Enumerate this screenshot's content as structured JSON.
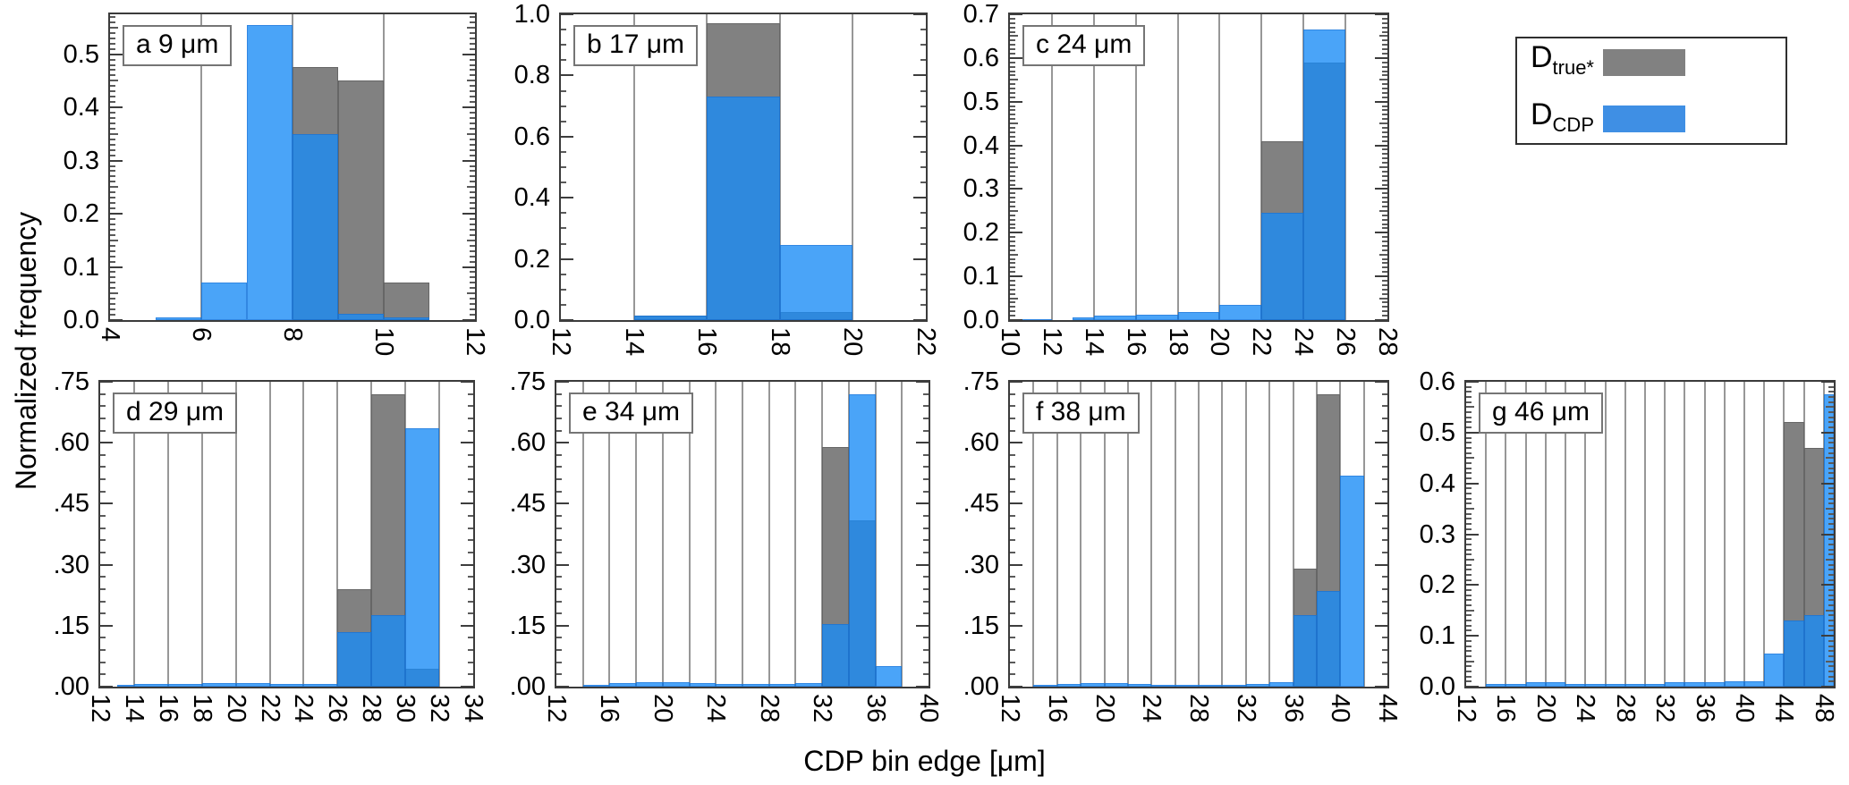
{
  "axes": {
    "y_title": "Normalized frequency",
    "x_title": "CDP bin edge [μm]"
  },
  "colors": {
    "gray": "#818181",
    "blue_fill": "rgba(26,139,246,0.79)",
    "legend_gray": "#818181",
    "legend_blue": "#3F8FE4"
  },
  "legend": {
    "items": [
      {
        "main": "D",
        "sub": "true*",
        "series_key": "gray"
      },
      {
        "main": "D",
        "sub": "CDP",
        "series_key": "blue"
      }
    ]
  },
  "chart_data": [
    {
      "type": "bar",
      "panel": "a",
      "title": "a 9 μm",
      "x_range": [
        4,
        12
      ],
      "grid_step": 2,
      "x_tick_vals": [
        4,
        6,
        8,
        10,
        12
      ],
      "x_ticks": [
        "4",
        "6",
        "8",
        "10",
        "12"
      ],
      "y_range": [
        0,
        0.575
      ],
      "y_major_step": 0.1,
      "y_minor_div": 10,
      "y_tick_labels": [
        "0.0",
        "0.1",
        "0.2",
        "0.3",
        "0.4",
        "0.5"
      ],
      "series": [
        {
          "name": "Dtrue*",
          "color_key": "gray",
          "bars": [
            [
              8,
              9,
              0.475
            ],
            [
              9,
              10,
              0.45
            ],
            [
              10,
              11,
              0.07
            ]
          ]
        },
        {
          "name": "DCDP",
          "color_key": "blue",
          "bars": [
            [
              5,
              6,
              0.005
            ],
            [
              6,
              7,
              0.07
            ],
            [
              7,
              8,
              0.555
            ],
            [
              8,
              9,
              0.35
            ],
            [
              9,
              10,
              0.012
            ],
            [
              10,
              11,
              0.005
            ]
          ]
        }
      ]
    },
    {
      "type": "bar",
      "panel": "b",
      "title": "b 17 μm",
      "x_range": [
        12,
        22
      ],
      "grid_step": 2,
      "x_tick_vals": [
        12,
        14,
        16,
        18,
        20,
        22
      ],
      "x_ticks": [
        "12",
        "14",
        "16",
        "18",
        "20",
        "22"
      ],
      "y_range": [
        0,
        1.0
      ],
      "y_major_step": 0.2,
      "y_minor_div": 4,
      "y_tick_labels": [
        "0.0",
        "0.2",
        "0.4",
        "0.6",
        "0.8",
        "1.0"
      ],
      "series": [
        {
          "name": "Dtrue*",
          "color_key": "gray",
          "bars": [
            [
              14,
              16,
              0.015
            ],
            [
              16,
              18,
              0.97
            ],
            [
              18,
              20,
              0.025
            ]
          ]
        },
        {
          "name": "DCDP",
          "color_key": "blue",
          "bars": [
            [
              14,
              16,
              0.015
            ],
            [
              16,
              18,
              0.73
            ],
            [
              18,
              20,
              0.245
            ]
          ]
        }
      ]
    },
    {
      "type": "bar",
      "panel": "c",
      "title": "c 24 μm",
      "x_range": [
        10,
        28
      ],
      "grid_step": 2,
      "x_tick_vals": [
        10,
        12,
        14,
        16,
        18,
        20,
        22,
        24,
        26,
        28
      ],
      "x_ticks": [
        "10",
        "12",
        "14",
        "16",
        "18",
        "20",
        "22",
        "24",
        "26",
        "28"
      ],
      "y_range": [
        0,
        0.7
      ],
      "y_major_step": 0.1,
      "y_minor_div": 10,
      "y_tick_labels": [
        "0.0",
        "0.1",
        "0.2",
        "0.3",
        "0.4",
        "0.5",
        "0.6",
        "0.7"
      ],
      "series": [
        {
          "name": "Dtrue*",
          "color_key": "gray",
          "bars": [
            [
              22,
              24,
              0.41
            ],
            [
              24,
              26,
              0.59
            ]
          ]
        },
        {
          "name": "DCDP",
          "color_key": "blue",
          "bars": [
            [
              10,
              12,
              0.003
            ],
            [
              13,
              14,
              0.007
            ],
            [
              14,
              16,
              0.01
            ],
            [
              16,
              18,
              0.013
            ],
            [
              18,
              20,
              0.018
            ],
            [
              20,
              22,
              0.035
            ],
            [
              22,
              24,
              0.245
            ],
            [
              24,
              26,
              0.665
            ]
          ]
        }
      ]
    },
    {
      "type": "bar",
      "panel": "d",
      "title": "d 29 μm",
      "x_range": [
        12,
        34
      ],
      "grid_step": 2,
      "x_tick_vals": [
        12,
        14,
        16,
        18,
        20,
        22,
        24,
        26,
        28,
        30,
        32,
        34
      ],
      "x_ticks": [
        "12",
        "14",
        "16",
        "18",
        "20",
        "22",
        "24",
        "26",
        "28",
        "30",
        "32",
        "34"
      ],
      "y_range": [
        0,
        0.75
      ],
      "y_major_step": 0.15,
      "y_minor_div": 5,
      "y_tick_labels": [
        ".00",
        ".15",
        ".30",
        ".45",
        ".60",
        ".75"
      ],
      "series": [
        {
          "name": "Dtrue*",
          "color_key": "gray",
          "bars": [
            [
              26,
              28,
              0.24
            ],
            [
              28,
              30,
              0.72
            ],
            [
              30,
              32,
              0.045
            ]
          ]
        },
        {
          "name": "DCDP",
          "color_key": "blue",
          "bars": [
            [
              13,
              14,
              0.004
            ],
            [
              14,
              16,
              0.006
            ],
            [
              16,
              18,
              0.006
            ],
            [
              18,
              20,
              0.008
            ],
            [
              20,
              22,
              0.008
            ],
            [
              22,
              24,
              0.006
            ],
            [
              24,
              26,
              0.006
            ],
            [
              26,
              28,
              0.135
            ],
            [
              28,
              30,
              0.175
            ],
            [
              30,
              32,
              0.635
            ]
          ]
        }
      ]
    },
    {
      "type": "bar",
      "panel": "e",
      "title": "e 34 μm",
      "x_range": [
        12,
        40
      ],
      "grid_step": 2,
      "x_tick_vals": [
        12,
        16,
        20,
        24,
        28,
        32,
        36,
        40
      ],
      "x_ticks": [
        "12",
        "16",
        "20",
        "24",
        "28",
        "32",
        "36",
        "40"
      ],
      "y_range": [
        0,
        0.75
      ],
      "y_major_step": 0.15,
      "y_minor_div": 5,
      "y_tick_labels": [
        ".00",
        ".15",
        ".30",
        ".45",
        ".60",
        ".75"
      ],
      "series": [
        {
          "name": "Dtrue*",
          "color_key": "gray",
          "bars": [
            [
              32,
              34,
              0.59
            ],
            [
              34,
              36,
              0.41
            ]
          ]
        },
        {
          "name": "DCDP",
          "color_key": "blue",
          "bars": [
            [
              14,
              16,
              0.005
            ],
            [
              16,
              18,
              0.008
            ],
            [
              18,
              20,
              0.01
            ],
            [
              20,
              22,
              0.01
            ],
            [
              22,
              24,
              0.008
            ],
            [
              24,
              26,
              0.006
            ],
            [
              26,
              28,
              0.006
            ],
            [
              28,
              30,
              0.006
            ],
            [
              30,
              32,
              0.008
            ],
            [
              32,
              34,
              0.155
            ],
            [
              34,
              36,
              0.72
            ],
            [
              36,
              38,
              0.05
            ]
          ]
        }
      ]
    },
    {
      "type": "bar",
      "panel": "f",
      "title": "f 38 μm",
      "x_range": [
        12,
        44
      ],
      "grid_step": 2,
      "x_tick_vals": [
        12,
        16,
        20,
        24,
        28,
        32,
        36,
        40,
        44
      ],
      "x_ticks": [
        "12",
        "16",
        "20",
        "24",
        "28",
        "32",
        "36",
        "40",
        "44"
      ],
      "y_range": [
        0,
        0.75
      ],
      "y_major_step": 0.15,
      "y_minor_div": 5,
      "y_tick_labels": [
        ".00",
        ".15",
        ".30",
        ".45",
        ".60",
        ".75"
      ],
      "series": [
        {
          "name": "Dtrue*",
          "color_key": "gray",
          "bars": [
            [
              36,
              38,
              0.29
            ],
            [
              38,
              40,
              0.72
            ]
          ]
        },
        {
          "name": "DCDP",
          "color_key": "blue",
          "bars": [
            [
              14,
              16,
              0.004
            ],
            [
              16,
              18,
              0.006
            ],
            [
              18,
              20,
              0.008
            ],
            [
              20,
              22,
              0.008
            ],
            [
              22,
              24,
              0.006
            ],
            [
              24,
              26,
              0.005
            ],
            [
              26,
              28,
              0.004
            ],
            [
              28,
              30,
              0.005
            ],
            [
              30,
              32,
              0.004
            ],
            [
              32,
              34,
              0.006
            ],
            [
              34,
              36,
              0.012
            ],
            [
              36,
              38,
              0.175
            ],
            [
              38,
              40,
              0.235
            ],
            [
              40,
              42,
              0.52
            ]
          ]
        }
      ]
    },
    {
      "type": "bar",
      "panel": "g",
      "title": "g 46 μm",
      "x_range": [
        12,
        49
      ],
      "grid_step": 2,
      "x_tick_vals": [
        12,
        16,
        20,
        24,
        28,
        32,
        36,
        40,
        44,
        48
      ],
      "x_ticks": [
        "12",
        "16",
        "20",
        "24",
        "28",
        "32",
        "36",
        "40",
        "44",
        "48"
      ],
      "y_range": [
        0,
        0.6
      ],
      "y_major_step": 0.1,
      "y_minor_div": 10,
      "y_tick_labels": [
        "0.0",
        "0.1",
        "0.2",
        "0.3",
        "0.4",
        "0.5",
        "0.6"
      ],
      "series": [
        {
          "name": "Dtrue*",
          "color_key": "gray",
          "bars": [
            [
              44,
              46,
              0.52
            ],
            [
              46,
              48,
              0.47
            ]
          ]
        },
        {
          "name": "DCDP",
          "color_key": "blue",
          "bars": [
            [
              14,
              16,
              0.005
            ],
            [
              16,
              18,
              0.006
            ],
            [
              18,
              20,
              0.008
            ],
            [
              20,
              22,
              0.008
            ],
            [
              22,
              24,
              0.006
            ],
            [
              24,
              26,
              0.005
            ],
            [
              26,
              28,
              0.005
            ],
            [
              28,
              30,
              0.005
            ],
            [
              30,
              32,
              0.006
            ],
            [
              32,
              34,
              0.008
            ],
            [
              34,
              36,
              0.008
            ],
            [
              36,
              38,
              0.008
            ],
            [
              38,
              40,
              0.01
            ],
            [
              40,
              42,
              0.01
            ],
            [
              42,
              44,
              0.065
            ],
            [
              44,
              46,
              0.13
            ],
            [
              46,
              48,
              0.14
            ],
            [
              48,
              49,
              0.575
            ]
          ]
        }
      ]
    }
  ]
}
